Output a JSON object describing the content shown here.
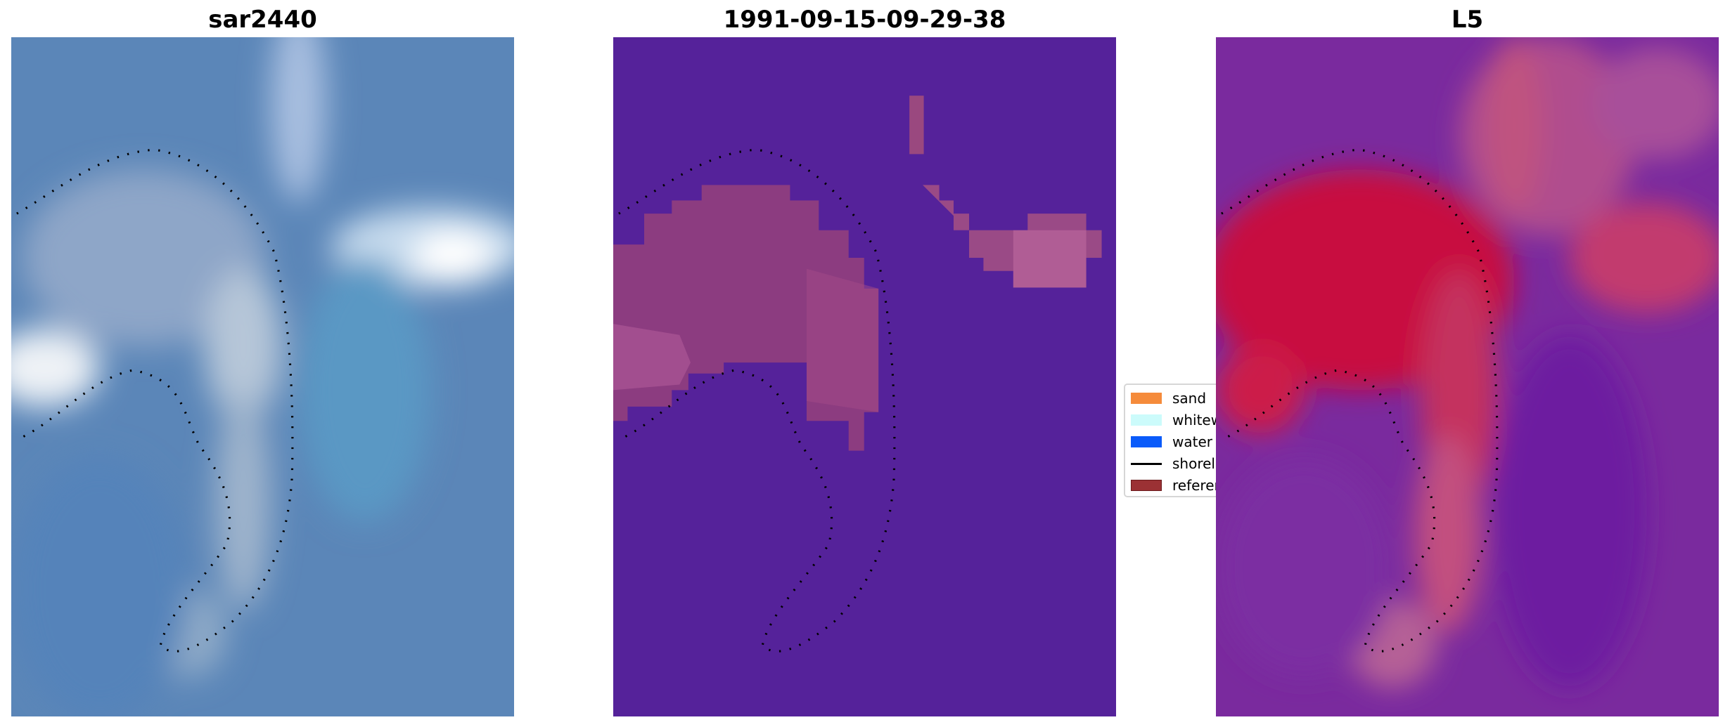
{
  "chart_data": [
    {
      "type": "heatmap",
      "title": "sar2440",
      "description_kind": "rgb-image",
      "grid": false
    },
    {
      "type": "heatmap",
      "title": "1991-09-15-09-29-38",
      "description_kind": "classified-mask",
      "grid": false
    },
    {
      "type": "heatmap",
      "title": "L5",
      "description_kind": "probability-image",
      "grid": false
    }
  ],
  "legend": {
    "placement": "center-right of middle panel",
    "items": [
      {
        "label": "sand",
        "color": "#f58b3b",
        "kind": "patch"
      },
      {
        "label": "whitewater",
        "color": "#ccfbfb",
        "kind": "patch"
      },
      {
        "label": "water",
        "color": "#0a5bfa",
        "kind": "patch"
      },
      {
        "label": "shoreline",
        "color": "#000000",
        "kind": "line"
      },
      {
        "label": "reference",
        "color": "#9b3134",
        "kind": "patch"
      }
    ]
  },
  "colors": {
    "mask_background": "#55229a",
    "mask_pink": "#8c3c80",
    "l5_base": "#7a2a9e",
    "l5_red": "#c8103f",
    "sar_base": "#5b86b8"
  }
}
